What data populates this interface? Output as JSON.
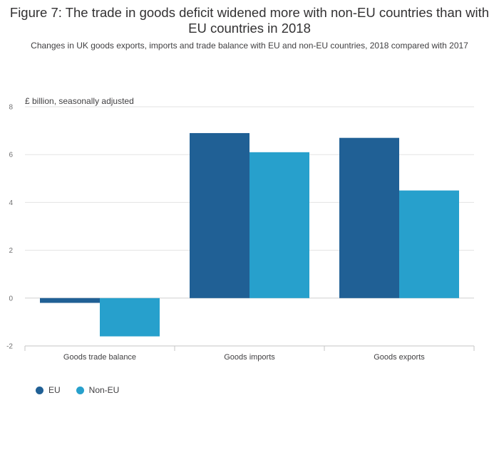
{
  "title": "Figure 7: The trade in goods deficit widened more with non-EU countries than with EU countries in 2018",
  "subtitle": "Changes in UK goods exports, imports and trade balance with EU and non-EU countries, 2018 compared with 2017",
  "chart_data": {
    "type": "bar",
    "title": "Figure 7: The trade in goods deficit widened more with non-EU countries than with EU countries in 2018",
    "subtitle": "Changes in UK goods exports, imports and trade balance with EU and non-EU countries, 2018 compared with 2017",
    "ylabel": "£ billion, seasonally adjusted",
    "xlabel": "",
    "categories": [
      "Goods trade balance",
      "Goods imports",
      "Goods exports"
    ],
    "series": [
      {
        "name": "EU",
        "color": "#206095",
        "values": [
          -0.2,
          6.9,
          6.7
        ]
      },
      {
        "name": "Non-EU",
        "color": "#27a0cc",
        "values": [
          -1.6,
          6.1,
          4.5
        ]
      }
    ],
    "ylim": [
      -2,
      8
    ],
    "yticks": [
      -2,
      0,
      2,
      4,
      6,
      8
    ],
    "grid": true,
    "legend_position": "bottom-left"
  }
}
